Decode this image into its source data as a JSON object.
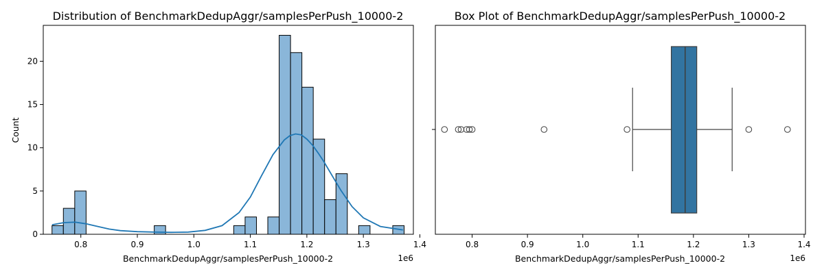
{
  "chart_data": [
    {
      "type": "bar",
      "subtype": "histogram-with-kde",
      "title": "Distribution of BenchmarkDedupAggr/samplesPerPush_10000-2",
      "xlabel": "BenchmarkDedupAggr/samplesPerPush_10000-2",
      "ylabel": "Count",
      "x_offset_label": "1e6",
      "xlim": [
        0.7335,
        1.3885
      ],
      "ylim": [
        0,
        24.15
      ],
      "xticks": [
        0.8,
        0.9,
        1.0,
        1.1,
        1.2,
        1.3,
        1.4
      ],
      "xtick_labels": [
        "0.8",
        "0.9",
        "1.0",
        "1.1",
        "1.2",
        "1.3",
        "1.4"
      ],
      "yticks": [
        0,
        5,
        10,
        15,
        20
      ],
      "ytick_labels": [
        "0",
        "5",
        "10",
        "15",
        "20"
      ],
      "bin_start": 0.749,
      "bin_width": 0.0201,
      "counts": [
        1,
        3,
        5,
        0,
        0,
        0,
        0,
        0,
        0,
        1,
        0,
        0,
        0,
        0,
        0,
        0,
        1,
        2,
        0,
        2,
        23,
        21,
        17,
        11,
        4,
        7,
        0,
        1,
        0,
        0,
        1
      ],
      "bar_color": "#8ab6d9",
      "kde": {
        "x": [
          0.749,
          0.77,
          0.79,
          0.81,
          0.83,
          0.85,
          0.87,
          0.9,
          0.93,
          0.96,
          0.99,
          1.02,
          1.05,
          1.08,
          1.1,
          1.12,
          1.14,
          1.16,
          1.17,
          1.18,
          1.19,
          1.2,
          1.21,
          1.22,
          1.23,
          1.24,
          1.25,
          1.26,
          1.28,
          1.3,
          1.33,
          1.37
        ],
        "y": [
          1.1,
          1.35,
          1.4,
          1.2,
          0.9,
          0.6,
          0.42,
          0.3,
          0.25,
          0.22,
          0.25,
          0.45,
          1.0,
          2.5,
          4.3,
          6.8,
          9.2,
          10.9,
          11.4,
          11.6,
          11.5,
          11.0,
          10.3,
          9.4,
          8.4,
          7.3,
          6.2,
          5.1,
          3.2,
          1.9,
          0.9,
          0.5
        ],
        "color": "#1f77b4"
      }
    },
    {
      "type": "boxplot",
      "title": "Box Plot of BenchmarkDedupAggr/samplesPerPush_10000-2",
      "xlabel": "BenchmarkDedupAggr/samplesPerPush_10000-2",
      "x_offset_label": "1e6",
      "xlim": [
        0.7335,
        1.4025
      ],
      "xticks": [
        0.8,
        0.9,
        1.0,
        1.1,
        1.2,
        1.3,
        1.4
      ],
      "xtick_labels": [
        "0.8",
        "0.9",
        "1.0",
        "1.1",
        "1.2",
        "1.3",
        "1.4"
      ],
      "q1": 1.16,
      "median": 1.185,
      "q3": 1.206,
      "whisker_low": 1.09,
      "whisker_high": 1.27,
      "outliers": [
        0.75,
        0.775,
        0.78,
        0.79,
        0.795,
        0.8,
        0.93,
        1.08,
        1.3,
        1.37
      ],
      "box_color": "#3274a1"
    }
  ]
}
